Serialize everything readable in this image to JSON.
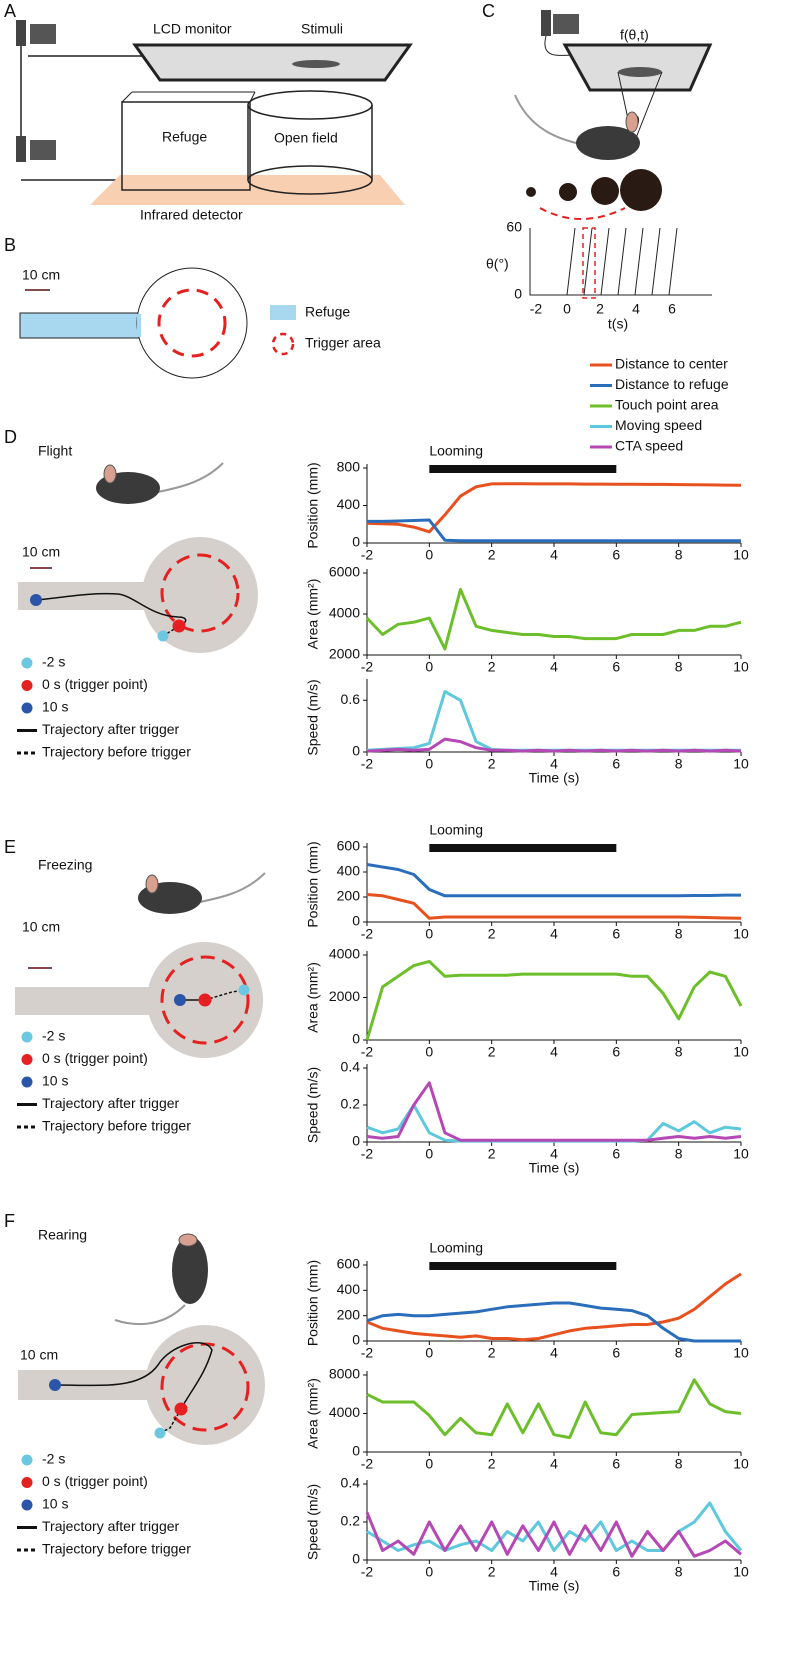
{
  "panels": {
    "A": {
      "label": "A",
      "lcd_monitor": "LCD monitor",
      "stimuli": "Stimuli",
      "refuge": "Refuge",
      "open_field": "Open field",
      "infrared_detector": "Infrared detector"
    },
    "B": {
      "label": "B",
      "scale": "10 cm",
      "legend": [
        "Refuge",
        "Trigger area"
      ]
    },
    "C": {
      "label": "C",
      "function": "f(θ,t)",
      "angle": "θ",
      "y_label": "θ(°)",
      "y_ticks": [
        "60",
        "0"
      ],
      "x_ticks": [
        "-2",
        "0",
        "2",
        "4",
        "6"
      ],
      "x_label": "t(s)"
    },
    "D": {
      "label": "D",
      "behavior": "Flight",
      "scale": "10 cm",
      "legend": [
        "-2 s",
        "0 s (trigger point)",
        "10 s",
        "Trajectory after trigger",
        "Trajectory before trigger"
      ]
    },
    "E": {
      "label": "E",
      "behavior": "Freezing",
      "scale": "10 cm",
      "legend": [
        "-2 s",
        "0 s (trigger point)",
        "10 s",
        "Trajectory after trigger",
        "Trajectory before trigger"
      ]
    },
    "F": {
      "label": "F",
      "behavior": "Rearing",
      "scale": "10 cm",
      "legend": [
        "-2 s",
        "0 s (trigger point)",
        "10 s",
        "Trajectory after trigger",
        "Trajectory before trigger"
      ]
    }
  },
  "chart_data": [
    {
      "type": "line",
      "ylabel": "Position (mm)",
      "annotation": "Looming",
      "looming": [
        0,
        6
      ],
      "x": [
        -2,
        -1.5,
        -1,
        -0.5,
        0,
        0.5,
        1,
        1.5,
        2,
        2.5,
        3,
        3.5,
        4,
        4.5,
        5,
        5.5,
        6,
        6.5,
        7,
        7.5,
        8,
        8.5,
        9,
        9.5,
        10
      ],
      "series": [
        {
          "name": "Distance to center",
          "color": "#e8501e",
          "values": [
            210,
            205,
            200,
            170,
            120,
            300,
            500,
            600,
            630,
            632,
            632,
            630,
            630,
            630,
            628,
            628,
            627,
            627,
            625,
            625,
            623,
            622,
            620,
            618,
            615
          ]
        },
        {
          "name": "Distance to refuge",
          "color": "#2a6ebb",
          "values": [
            230,
            230,
            235,
            240,
            245,
            30,
            25,
            25,
            25,
            25,
            25,
            25,
            25,
            25,
            25,
            25,
            25,
            25,
            25,
            25,
            25,
            25,
            25,
            25,
            25
          ]
        }
      ],
      "xlim": [
        -2,
        10
      ],
      "xticks": [
        -2,
        0,
        2,
        4,
        6,
        8,
        10
      ],
      "ylim": [
        0,
        800
      ],
      "yticks": [
        0,
        400,
        800
      ]
    },
    {
      "type": "line",
      "ylabel": "Area (mm²)",
      "x": [
        -2,
        -1.5,
        -1,
        -0.5,
        0,
        0.5,
        1,
        1.5,
        2,
        2.5,
        3,
        3.5,
        4,
        4.5,
        5,
        5.5,
        6,
        6.5,
        7,
        7.5,
        8,
        8.5,
        9,
        9.5,
        10
      ],
      "series": [
        {
          "name": "Touch point area",
          "color": "#6cbf2a",
          "values": [
            3800,
            3000,
            3500,
            3600,
            3800,
            2300,
            5200,
            3400,
            3200,
            3100,
            3000,
            3000,
            2900,
            2900,
            2800,
            2800,
            2800,
            3000,
            3000,
            3000,
            3200,
            3200,
            3400,
            3400,
            3600
          ]
        }
      ],
      "xlim": [
        -2,
        10
      ],
      "xticks": [
        -2,
        0,
        2,
        4,
        6,
        8,
        10
      ],
      "ylim": [
        2000,
        6000
      ],
      "yticks": [
        2000,
        4000,
        6000
      ]
    },
    {
      "type": "line",
      "ylabel": "Speed (m/s)",
      "xlabel": "Time (s)",
      "x": [
        -2,
        -1.5,
        -1,
        -0.5,
        0,
        0.5,
        1,
        1.5,
        2,
        2.5,
        3,
        3.5,
        4,
        4.5,
        5,
        5.5,
        6,
        6.5,
        7,
        7.5,
        8,
        8.5,
        9,
        9.5,
        10
      ],
      "series": [
        {
          "name": "Moving speed",
          "color": "#5ec8dc",
          "values": [
            0.02,
            0.03,
            0.04,
            0.05,
            0.1,
            0.7,
            0.6,
            0.12,
            0.03,
            0.02,
            0.02,
            0.02,
            0.02,
            0.02,
            0.02,
            0.02,
            0.02,
            0.02,
            0.02,
            0.02,
            0.02,
            0.02,
            0.02,
            0.02,
            0.02
          ]
        },
        {
          "name": "CTA speed",
          "color": "#b548b5",
          "values": [
            0.01,
            0.02,
            0.03,
            0.02,
            0.03,
            0.15,
            0.12,
            0.05,
            0.02,
            0.02,
            0.01,
            0.02,
            0.01,
            0.02,
            0.01,
            0.02,
            0.01,
            0.02,
            0.01,
            0.02,
            0.01,
            0.02,
            0.01,
            0.02,
            0.01
          ]
        }
      ],
      "xlim": [
        -2,
        10
      ],
      "xticks": [
        -2,
        0,
        2,
        4,
        6,
        8,
        10
      ],
      "ylim": [
        0,
        0.8
      ],
      "yticks": [
        0,
        0.6
      ]
    },
    {
      "type": "line",
      "ylabel": "Position (mm)",
      "annotation": "Looming",
      "looming": [
        0,
        6
      ],
      "x": [
        -2,
        -1.5,
        -1,
        -0.5,
        0,
        0.5,
        1,
        1.5,
        2,
        2.5,
        3,
        3.5,
        4,
        4.5,
        5,
        5.5,
        6,
        6.5,
        7,
        7.5,
        8,
        8.5,
        9,
        9.5,
        10
      ],
      "series": [
        {
          "color": "#e8501e",
          "values": [
            220,
            210,
            180,
            150,
            30,
            40,
            40,
            40,
            40,
            40,
            40,
            40,
            40,
            40,
            40,
            40,
            40,
            40,
            40,
            40,
            40,
            38,
            35,
            32,
            30
          ]
        },
        {
          "color": "#2a6ebb",
          "values": [
            460,
            440,
            420,
            380,
            260,
            210,
            210,
            210,
            210,
            210,
            210,
            210,
            210,
            210,
            210,
            210,
            210,
            210,
            210,
            210,
            210,
            212,
            212,
            215,
            215
          ]
        }
      ],
      "xlim": [
        -2,
        10
      ],
      "xticks": [
        -2,
        0,
        2,
        4,
        6,
        8,
        10
      ],
      "ylim": [
        0,
        600
      ],
      "yticks": [
        0,
        200,
        400,
        600
      ]
    },
    {
      "type": "line",
      "ylabel": "Area (mm²)",
      "x": [
        -2,
        -1.5,
        -1,
        -0.5,
        0,
        0.5,
        1,
        1.5,
        2,
        2.5,
        3,
        3.5,
        4,
        4.5,
        5,
        5.5,
        6,
        6.5,
        7,
        7.5,
        8,
        8.5,
        9,
        9.5,
        10
      ],
      "series": [
        {
          "color": "#6cbf2a",
          "values": [
            0,
            2500,
            3000,
            3500,
            3700,
            3000,
            3050,
            3050,
            3050,
            3050,
            3100,
            3100,
            3100,
            3100,
            3100,
            3100,
            3100,
            3000,
            3000,
            2200,
            1000,
            2500,
            3200,
            3000,
            1600
          ]
        }
      ],
      "xlim": [
        -2,
        10
      ],
      "xticks": [
        -2,
        0,
        2,
        4,
        6,
        8,
        10
      ],
      "ylim": [
        0,
        4000
      ],
      "yticks": [
        0,
        2000,
        4000
      ]
    },
    {
      "type": "line",
      "ylabel": "Speed (m/s)",
      "xlabel": "Time (s)",
      "x": [
        -2,
        -1.5,
        -1,
        -0.5,
        0,
        0.5,
        1,
        1.5,
        2,
        2.5,
        3,
        3.5,
        4,
        4.5,
        5,
        5.5,
        6,
        6.5,
        7,
        7.5,
        8,
        8.5,
        9,
        9.5,
        10
      ],
      "series": [
        {
          "color": "#5ec8dc",
          "values": [
            0.08,
            0.05,
            0.07,
            0.2,
            0.05,
            0.01,
            0.005,
            0.005,
            0.005,
            0.005,
            0.005,
            0.005,
            0.005,
            0.005,
            0.005,
            0.005,
            0.005,
            0.005,
            0.01,
            0.1,
            0.06,
            0.11,
            0.05,
            0.08,
            0.07
          ]
        },
        {
          "color": "#b548b5",
          "values": [
            0.03,
            0.02,
            0.03,
            0.2,
            0.32,
            0.05,
            0.01,
            0.01,
            0.01,
            0.01,
            0.01,
            0.01,
            0.01,
            0.01,
            0.01,
            0.01,
            0.01,
            0.01,
            0.01,
            0.02,
            0.03,
            0.02,
            0.03,
            0.02,
            0.03
          ]
        }
      ],
      "xlim": [
        -2,
        10
      ],
      "xticks": [
        -2,
        0,
        2,
        4,
        6,
        8,
        10
      ],
      "ylim": [
        0,
        0.4
      ],
      "yticks": [
        0,
        0.2,
        0.4
      ]
    },
    {
      "type": "line",
      "ylabel": "Position (mm)",
      "annotation": "Looming",
      "looming": [
        0,
        6
      ],
      "x": [
        -2,
        -1.5,
        -1,
        -0.5,
        0,
        0.5,
        1,
        1.5,
        2,
        2.5,
        3,
        3.5,
        4,
        4.5,
        5,
        5.5,
        6,
        6.5,
        7,
        7.5,
        8,
        8.5,
        9,
        9.5,
        10
      ],
      "series": [
        {
          "color": "#e8501e",
          "values": [
            150,
            100,
            80,
            60,
            50,
            40,
            30,
            40,
            20,
            20,
            10,
            20,
            50,
            80,
            100,
            110,
            120,
            130,
            130,
            150,
            180,
            250,
            350,
            450,
            530
          ]
        },
        {
          "color": "#2a6ebb",
          "values": [
            160,
            200,
            210,
            200,
            200,
            210,
            220,
            230,
            250,
            270,
            280,
            290,
            300,
            300,
            280,
            260,
            250,
            240,
            200,
            100,
            20,
            0,
            0,
            0,
            0
          ]
        }
      ],
      "xlim": [
        -2,
        10
      ],
      "xticks": [
        -2,
        0,
        2,
        4,
        6,
        8,
        10
      ],
      "ylim": [
        0,
        600
      ],
      "yticks": [
        0,
        200,
        400,
        600
      ]
    },
    {
      "type": "line",
      "ylabel": "Area (mm²)",
      "x": [
        -2,
        -1.5,
        -1,
        -0.5,
        0,
        0.5,
        1,
        1.5,
        2,
        2.5,
        3,
        3.5,
        4,
        4.5,
        5,
        5.5,
        6,
        6.5,
        7,
        7.5,
        8,
        8.5,
        9,
        9.5,
        10
      ],
      "series": [
        {
          "color": "#6cbf2a",
          "values": [
            6000,
            5200,
            5200,
            5200,
            3800,
            1800,
            3500,
            2000,
            1800,
            5000,
            2000,
            5000,
            1800,
            1500,
            5200,
            2000,
            1800,
            3900,
            4000,
            4100,
            4200,
            7500,
            5000,
            4200,
            4000
          ]
        }
      ],
      "xlim": [
        -2,
        10
      ],
      "xticks": [
        -2,
        0,
        2,
        4,
        6,
        8,
        10
      ],
      "ylim": [
        0,
        8000
      ],
      "yticks": [
        0,
        4000,
        8000
      ]
    },
    {
      "type": "line",
      "ylabel": "Speed (m/s)",
      "xlabel": "Time (s)",
      "x": [
        -2,
        -1.5,
        -1,
        -0.5,
        0,
        0.5,
        1,
        1.5,
        2,
        2.5,
        3,
        3.5,
        4,
        4.5,
        5,
        5.5,
        6,
        6.5,
        7,
        7.5,
        8,
        8.5,
        9,
        9.5,
        10
      ],
      "series": [
        {
          "color": "#5ec8dc",
          "values": [
            0.15,
            0.1,
            0.05,
            0.08,
            0.1,
            0.05,
            0.08,
            0.1,
            0.05,
            0.15,
            0.1,
            0.2,
            0.05,
            0.15,
            0.1,
            0.2,
            0.05,
            0.1,
            0.05,
            0.05,
            0.15,
            0.2,
            0.3,
            0.15,
            0.05
          ]
        },
        {
          "color": "#b548b5",
          "values": [
            0.25,
            0.05,
            0.1,
            0.03,
            0.2,
            0.05,
            0.18,
            0.05,
            0.2,
            0.03,
            0.18,
            0.05,
            0.2,
            0.03,
            0.18,
            0.05,
            0.2,
            0.02,
            0.15,
            0.05,
            0.15,
            0.02,
            0.05,
            0.1,
            0.03
          ]
        }
      ],
      "xlim": [
        -2,
        10
      ],
      "xticks": [
        -2,
        0,
        2,
        4,
        6,
        8,
        10
      ],
      "ylim": [
        0,
        0.4
      ],
      "yticks": [
        0,
        0.2,
        0.4
      ]
    }
  ]
}
